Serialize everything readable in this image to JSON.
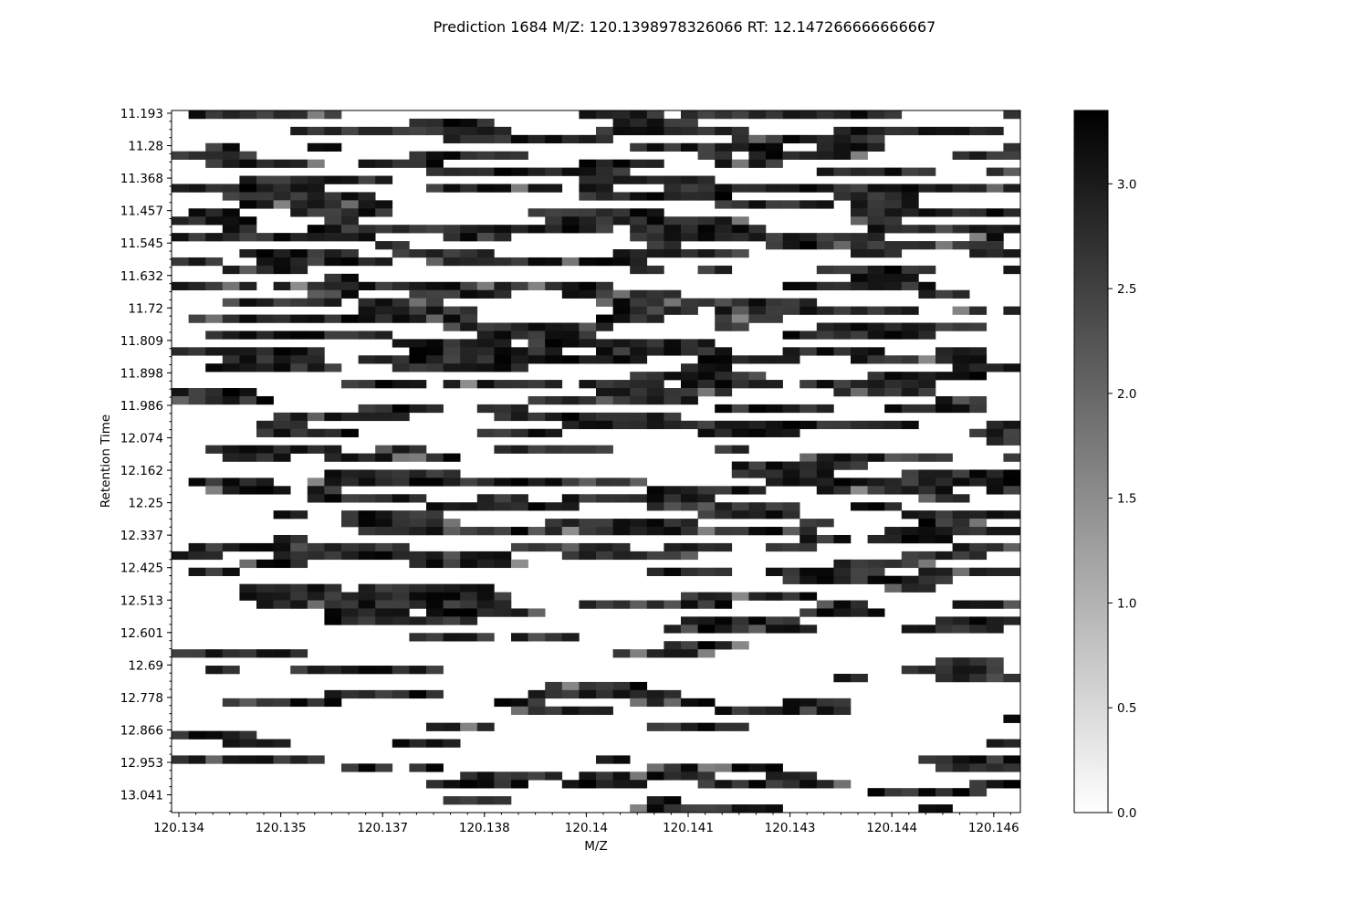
{
  "chart_data": {
    "type": "heatmap",
    "title": "Prediction 1684 M/Z: 120.1398978326066  RT: 12.147266666666667",
    "xlabel": "M/Z",
    "ylabel": "Retention Time",
    "x_ticks": [
      "120.134",
      "120.135",
      "120.137",
      "120.138",
      "120.14",
      "120.141",
      "120.143",
      "120.144",
      "120.146"
    ],
    "y_ticks": [
      "11.193",
      "11.28",
      "11.368",
      "11.457",
      "11.545",
      "11.632",
      "11.72",
      "11.809",
      "11.898",
      "11.986",
      "12.074",
      "12.162",
      "12.25",
      "12.337",
      "12.425",
      "12.513",
      "12.601",
      "12.69",
      "12.778",
      "12.866",
      "12.953",
      "13.041"
    ],
    "colorbar": {
      "min": 0.0,
      "max": 3.35,
      "ticks": [
        "0.0",
        "0.5",
        "1.0",
        "1.5",
        "2.0",
        "2.5",
        "3.0"
      ],
      "colormap": "grayscale-reversed"
    },
    "grid": {
      "columns": 50,
      "rows": 86,
      "density_note": "sparse horizontal streaks of intensity ~2.5-3.3, densest between RT 11.28 and 12.45"
    }
  }
}
